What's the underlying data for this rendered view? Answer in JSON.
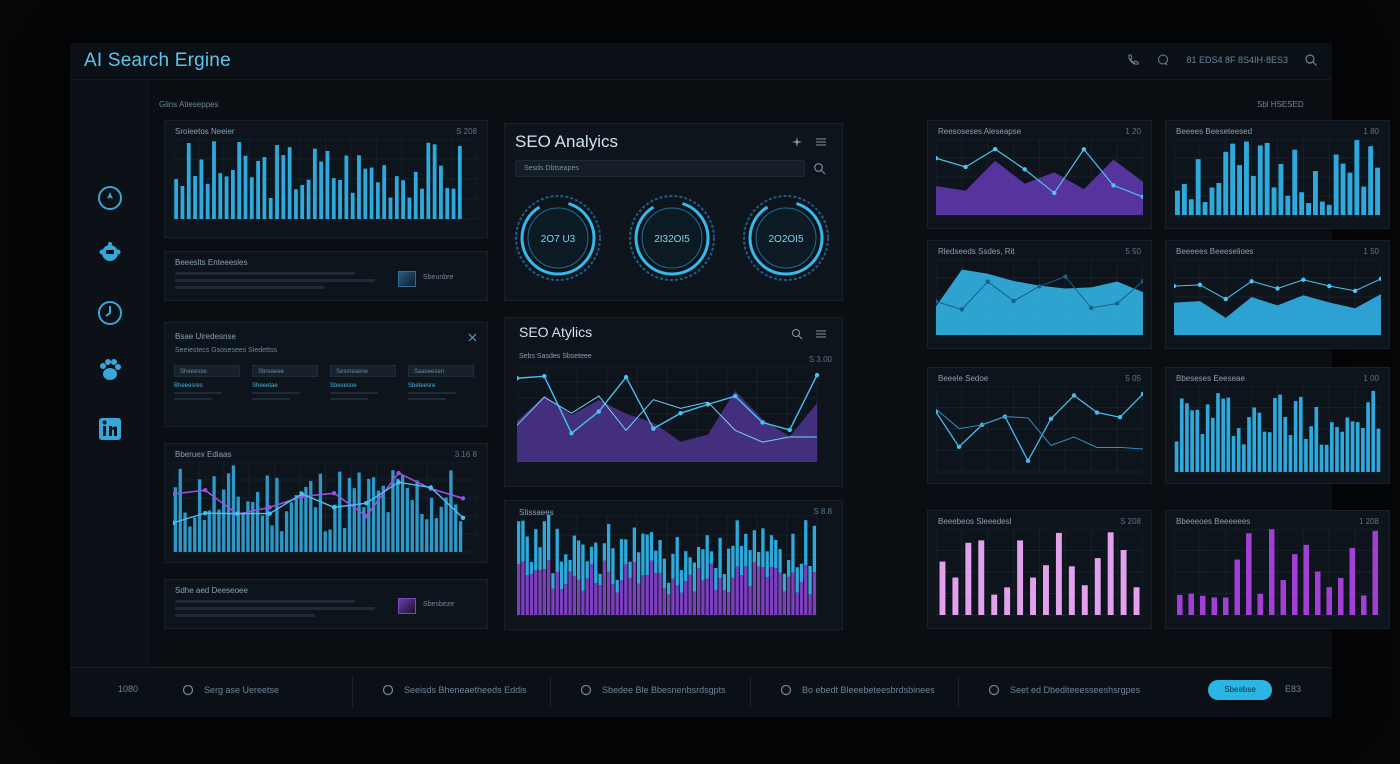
{
  "app": {
    "title": "AI Search Ergine",
    "header_status": "81 EDS4 8F 8S4IH·8ES3"
  },
  "sidebar": {
    "items": [
      {
        "name": "navigate-icon"
      },
      {
        "name": "bot-icon"
      },
      {
        "name": "clock-icon"
      },
      {
        "name": "paw-icon"
      },
      {
        "name": "linkedin-icon"
      }
    ]
  },
  "main": {
    "section_label": "Giins Atieseppes",
    "top_right_label": "Sbl HSESED",
    "left_column": {
      "bar_panel": {
        "label": "Sroieetos Neeier",
        "value": "S 208"
      },
      "info_card_1": {
        "label": "Beeeslts Enteeesles",
        "button": "Sbeunbre"
      },
      "tabs_panel": {
        "label": "Bsae Uiredesnse",
        "subtitle": "Seeiestecs Gsosesees Siedettss",
        "tabs": [
          "Sheeesse",
          "Sbreaeee",
          "Sesmeaene",
          "Saaseesen"
        ],
        "tab_titles": [
          "Bheeesres",
          "Sheeetae",
          "Sbesesoe",
          "Sbeteesre"
        ]
      },
      "line_panel": {
        "label": "Bberuex Ediaas",
        "value": "3.16 8"
      },
      "info_card_2": {
        "label": "Sdhe aed Deeseoee",
        "button": "Sbesbeze"
      }
    },
    "center_column": {
      "seo_top": {
        "title": "SEO Analyics",
        "search_placeholder": "Sesds Dbtseapes",
        "gauges": [
          "2O7 U3",
          "2I32OI5",
          "2O2OI5"
        ]
      },
      "seo_mid": {
        "title": "SEO Atylics",
        "label": "Sebs Sasdes Sbseteee",
        "value": "S 3.00"
      },
      "seo_bottom": {
        "label": "Stissaees",
        "value": "S 8.8"
      }
    },
    "right_panels": [
      {
        "label": "Reesoseses Aleseapse",
        "value": "1 20"
      },
      {
        "label": "Beeees Beeseteesed",
        "value": "1 80"
      },
      {
        "label": "Rledseeds Ssdes, Rit",
        "value": "5 50"
      },
      {
        "label": "Beeeees Beeeselioes",
        "value": "1 50"
      },
      {
        "label": "Beeele Sedoe",
        "value": "5 05"
      },
      {
        "label": "Bbeseses Eeeseae",
        "value": "1 00"
      },
      {
        "label": "Beeebeos Sleeedesl",
        "value": "S 208"
      },
      {
        "label": "Bbeeeoes Beeeeees",
        "value": "1 208"
      }
    ]
  },
  "footer": {
    "counter": "1080",
    "items": [
      {
        "label": "Serg ase Uereetse",
        "icon": "target-icon"
      },
      {
        "label": "Seeisds Bheneaetheeds Eddis",
        "icon": "power-icon"
      },
      {
        "label": "Sbedee Ble Bbesnenbsrdsgpts",
        "icon": "pin-icon"
      },
      {
        "label": "Bo ebedt Bleeebeteesbrdsbinees",
        "icon": "server-icon"
      },
      {
        "label": "Seet ed Dbediteeesseeshsrgpes",
        "icon": "nav-icon"
      }
    ],
    "button": "Sbeebse",
    "page": "E83"
  },
  "colors": {
    "accent": "#2bb5e2",
    "purple": "#7b3fbf",
    "bg": "#0a0d12"
  }
}
